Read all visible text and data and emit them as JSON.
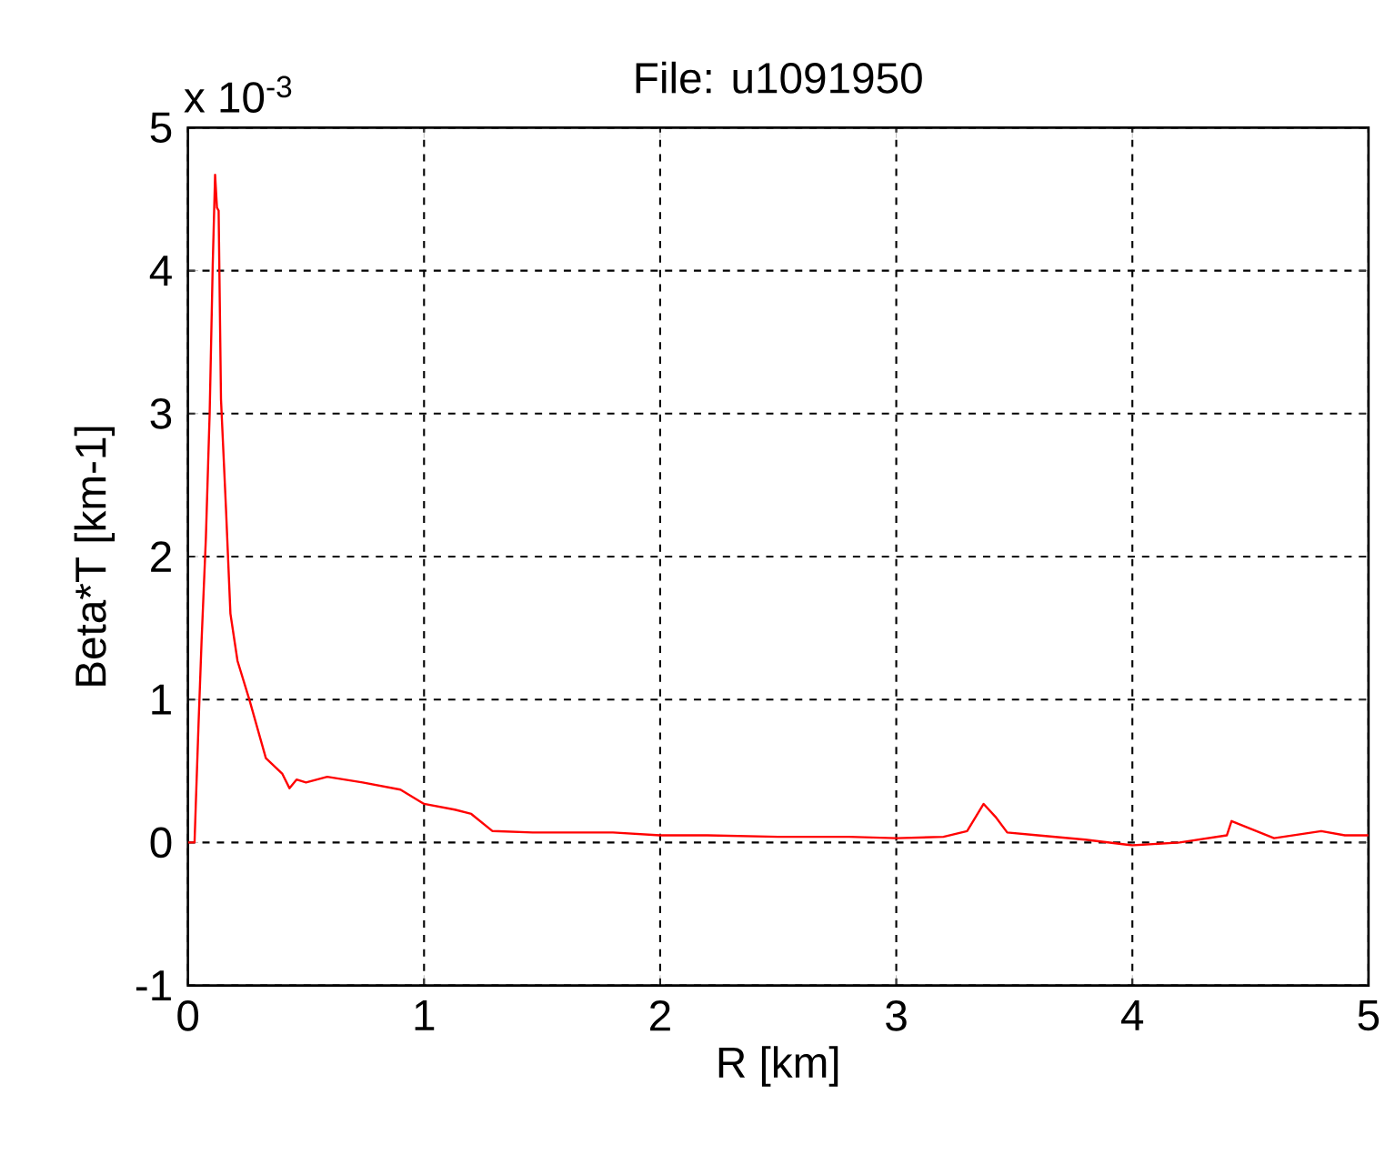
{
  "chart_data": {
    "type": "line",
    "title": "File: u1091950",
    "xlabel": "R [km]",
    "ylabel": "Beta*T [km-1]",
    "annotations": [
      "x 10$^{-3}$"
    ],
    "x": [
      0,
      0.028,
      0.033,
      0.045,
      0.058,
      0.076,
      0.092,
      0.105,
      0.115,
      0.123,
      0.13,
      0.14,
      0.161,
      0.18,
      0.21,
      0.26,
      0.33,
      0.4,
      0.43,
      0.46,
      0.5,
      0.59,
      0.74,
      0.9,
      1.0,
      1.13,
      1.2,
      1.29,
      1.46,
      1.8,
      2.0,
      2.2,
      2.5,
      2.8,
      3.0,
      3.2,
      3.3,
      3.37,
      3.42,
      3.47,
      3.6,
      3.8,
      4.0,
      4.2,
      4.4,
      4.42,
      4.6,
      4.8,
      4.9,
      5.0
    ],
    "series": [
      {
        "color": "#ff0000",
        "values": [
          0,
          0,
          0.25,
          0.83,
          1.42,
          2.13,
          3.0,
          4.04,
          4.67,
          4.44,
          4.42,
          3.1,
          2.34,
          1.6,
          1.27,
          1.0,
          0.59,
          0.48,
          0.38,
          0.44,
          0.42,
          0.46,
          0.42,
          0.37,
          0.27,
          0.23,
          0.2,
          0.08,
          0.07,
          0.07,
          0.05,
          0.05,
          0.04,
          0.04,
          0.03,
          0.04,
          0.08,
          0.27,
          0.18,
          0.07,
          0.05,
          0.02,
          -0.02,
          0.0,
          0.05,
          0.15,
          0.03,
          0.08,
          0.05,
          0.05
        ]
      }
    ],
    "xlim": [
      0,
      5
    ],
    "ylim": [
      -1,
      5
    ],
    "xticks": [
      0,
      1,
      2,
      3,
      4,
      5
    ],
    "yticks": [
      -1,
      0,
      1,
      2,
      3,
      4,
      5
    ],
    "grid": true,
    "line_style": "solid"
  }
}
